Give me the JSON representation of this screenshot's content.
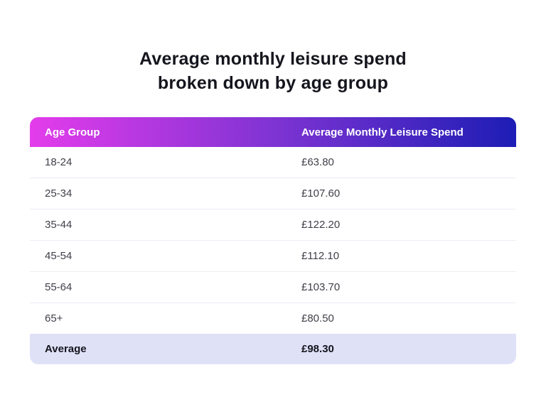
{
  "title": {
    "line1": "Average monthly leisure spend",
    "line2": "broken down by age group"
  },
  "table": {
    "header": {
      "col1": "Age Group",
      "col2": "Average Monthly Leisure Spend",
      "gradient_start": "#e43ceb",
      "gradient_end": "#1d1db5",
      "text_color": "#ffffff"
    },
    "rows": [
      {
        "age": "18-24",
        "spend": "£63.80"
      },
      {
        "age": "25-34",
        "spend": "£107.60"
      },
      {
        "age": "35-44",
        "spend": "£122.20"
      },
      {
        "age": "45-54",
        "spend": "£112.10"
      },
      {
        "age": "55-64",
        "spend": "£103.70"
      },
      {
        "age": "65+",
        "spend": "£80.50"
      }
    ],
    "footer": {
      "label": "Average",
      "spend": "£98.30",
      "background": "#dfe1f7"
    },
    "divider_color": "#ececf4"
  },
  "chart_data": {
    "type": "table",
    "title": "Average monthly leisure spend broken down by age group",
    "columns": [
      "Age Group",
      "Average Monthly Leisure Spend"
    ],
    "categories": [
      "18-24",
      "25-34",
      "35-44",
      "45-54",
      "55-64",
      "65+"
    ],
    "values": [
      63.8,
      107.6,
      122.2,
      112.1,
      103.7,
      80.5
    ],
    "average": 98.3,
    "currency": "£"
  }
}
